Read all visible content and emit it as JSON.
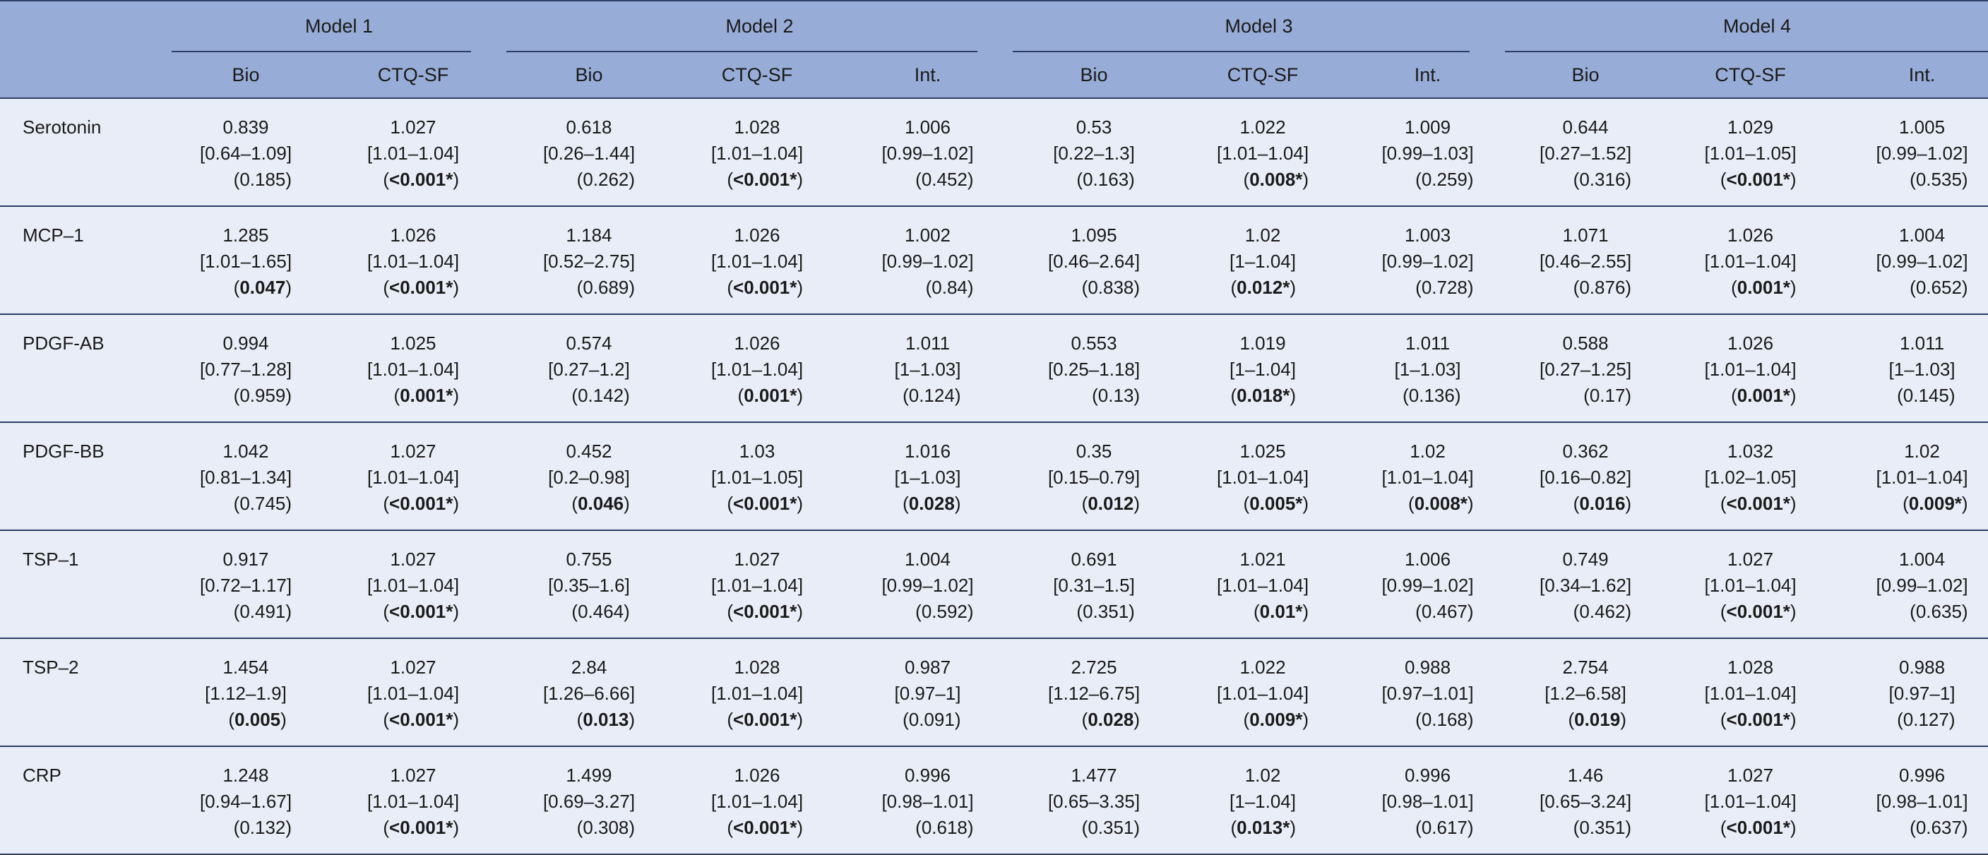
{
  "table": {
    "group_headers": [
      "Model 1",
      "Model 2",
      "Model 3",
      "Model 4"
    ],
    "sub_headers": [
      "Bio",
      "CTQ-SF",
      "Bio",
      "CTQ-SF",
      "Int.",
      "Bio",
      "CTQ-SF",
      "Int.",
      "Bio",
      "CTQ-SF",
      "Int."
    ],
    "rows": [
      {
        "label": "Serotonin",
        "cells": [
          {
            "est": "0.839",
            "ci": "[0.64–1.09]",
            "p": "0.185",
            "bold": false
          },
          {
            "est": "1.027",
            "ci": "[1.01–1.04]",
            "p": "<0.001*",
            "bold": true
          },
          {
            "est": "0.618",
            "ci": "[0.26–1.44]",
            "p": "0.262",
            "bold": false
          },
          {
            "est": "1.028",
            "ci": "[1.01–1.04]",
            "p": "<0.001*",
            "bold": true
          },
          {
            "est": "1.006",
            "ci": "[0.99–1.02]",
            "p": "0.452",
            "bold": false
          },
          {
            "est": "0.53",
            "ci": "[0.22–1.3]",
            "p": "0.163",
            "bold": false
          },
          {
            "est": "1.022",
            "ci": "[1.01–1.04]",
            "p": "0.008*",
            "bold": true
          },
          {
            "est": "1.009",
            "ci": "[0.99–1.03]",
            "p": "0.259",
            "bold": false
          },
          {
            "est": "0.644",
            "ci": "[0.27–1.52]",
            "p": "0.316",
            "bold": false
          },
          {
            "est": "1.029",
            "ci": "[1.01–1.05]",
            "p": "<0.001*",
            "bold": true
          },
          {
            "est": "1.005",
            "ci": "[0.99–1.02]",
            "p": "0.535",
            "bold": false
          }
        ]
      },
      {
        "label": "MCP–1",
        "cells": [
          {
            "est": "1.285",
            "ci": "[1.01–1.65]",
            "p": "0.047",
            "bold": true
          },
          {
            "est": "1.026",
            "ci": "[1.01–1.04]",
            "p": "<0.001*",
            "bold": true
          },
          {
            "est": "1.184",
            "ci": "[0.52–2.75]",
            "p": "0.689",
            "bold": false
          },
          {
            "est": "1.026",
            "ci": "[1.01–1.04]",
            "p": "<0.001*",
            "bold": true
          },
          {
            "est": "1.002",
            "ci": "[0.99–1.02]",
            "p": "0.84",
            "bold": false
          },
          {
            "est": "1.095",
            "ci": "[0.46–2.64]",
            "p": "0.838",
            "bold": false
          },
          {
            "est": "1.02",
            "ci": "[1–1.04]",
            "p": "0.012*",
            "bold": true
          },
          {
            "est": "1.003",
            "ci": "[0.99–1.02]",
            "p": "0.728",
            "bold": false
          },
          {
            "est": "1.071",
            "ci": "[0.46–2.55]",
            "p": "0.876",
            "bold": false
          },
          {
            "est": "1.026",
            "ci": "[1.01–1.04]",
            "p": "0.001*",
            "bold": true
          },
          {
            "est": "1.004",
            "ci": "[0.99–1.02]",
            "p": "0.652",
            "bold": false
          }
        ]
      },
      {
        "label": "PDGF-AB",
        "cells": [
          {
            "est": "0.994",
            "ci": "[0.77–1.28]",
            "p": "0.959",
            "bold": false
          },
          {
            "est": "1.025",
            "ci": "[1.01–1.04]",
            "p": "0.001*",
            "bold": true
          },
          {
            "est": "0.574",
            "ci": "[0.27–1.2]",
            "p": "0.142",
            "bold": false
          },
          {
            "est": "1.026",
            "ci": "[1.01–1.04]",
            "p": "0.001*",
            "bold": true
          },
          {
            "est": "1.011",
            "ci": "[1–1.03]",
            "p": "0.124",
            "bold": false
          },
          {
            "est": "0.553",
            "ci": "[0.25–1.18]",
            "p": "0.13",
            "bold": false
          },
          {
            "est": "1.019",
            "ci": "[1–1.04]",
            "p": "0.018*",
            "bold": true
          },
          {
            "est": "1.011",
            "ci": "[1–1.03]",
            "p": "0.136",
            "bold": false
          },
          {
            "est": "0.588",
            "ci": "[0.27–1.25]",
            "p": "0.17",
            "bold": false
          },
          {
            "est": "1.026",
            "ci": "[1.01–1.04]",
            "p": "0.001*",
            "bold": true
          },
          {
            "est": "1.011",
            "ci": "[1–1.03]",
            "p": "0.145",
            "bold": false
          }
        ]
      },
      {
        "label": "PDGF-BB",
        "cells": [
          {
            "est": "1.042",
            "ci": "[0.81–1.34]",
            "p": "0.745",
            "bold": false
          },
          {
            "est": "1.027",
            "ci": "[1.01–1.04]",
            "p": "<0.001*",
            "bold": true
          },
          {
            "est": "0.452",
            "ci": "[0.2–0.98]",
            "p": "0.046",
            "bold": true
          },
          {
            "est": "1.03",
            "ci": "[1.01–1.05]",
            "p": "<0.001*",
            "bold": true
          },
          {
            "est": "1.016",
            "ci": "[1–1.03]",
            "p": "0.028",
            "bold": true
          },
          {
            "est": "0.35",
            "ci": "[0.15–0.79]",
            "p": "0.012",
            "bold": true
          },
          {
            "est": "1.025",
            "ci": "[1.01–1.04]",
            "p": "0.005*",
            "bold": true
          },
          {
            "est": "1.02",
            "ci": "[1.01–1.04]",
            "p": "0.008*",
            "bold": true
          },
          {
            "est": "0.362",
            "ci": "[0.16–0.82]",
            "p": "0.016",
            "bold": true
          },
          {
            "est": "1.032",
            "ci": "[1.02–1.05]",
            "p": "<0.001*",
            "bold": true
          },
          {
            "est": "1.02",
            "ci": "[1.01–1.04]",
            "p": "0.009*",
            "bold": true
          }
        ]
      },
      {
        "label": "TSP–1",
        "cells": [
          {
            "est": "0.917",
            "ci": "[0.72–1.17]",
            "p": "0.491",
            "bold": false
          },
          {
            "est": "1.027",
            "ci": "[1.01–1.04]",
            "p": "<0.001*",
            "bold": true
          },
          {
            "est": "0.755",
            "ci": "[0.35–1.6]",
            "p": "0.464",
            "bold": false
          },
          {
            "est": "1.027",
            "ci": "[1.01–1.04]",
            "p": "<0.001*",
            "bold": true
          },
          {
            "est": "1.004",
            "ci": "[0.99–1.02]",
            "p": "0.592",
            "bold": false
          },
          {
            "est": "0.691",
            "ci": "[0.31–1.5]",
            "p": "0.351",
            "bold": false
          },
          {
            "est": "1.021",
            "ci": "[1.01–1.04]",
            "p": "0.01*",
            "bold": true
          },
          {
            "est": "1.006",
            "ci": "[0.99–1.02]",
            "p": "0.467",
            "bold": false
          },
          {
            "est": "0.749",
            "ci": "[0.34–1.62]",
            "p": "0.462",
            "bold": false
          },
          {
            "est": "1.027",
            "ci": "[1.01–1.04]",
            "p": "<0.001*",
            "bold": true
          },
          {
            "est": "1.004",
            "ci": "[0.99–1.02]",
            "p": "0.635",
            "bold": false
          }
        ]
      },
      {
        "label": "TSP–2",
        "cells": [
          {
            "est": "1.454",
            "ci": "[1.12–1.9]",
            "p": "0.005",
            "bold": true
          },
          {
            "est": "1.027",
            "ci": "[1.01–1.04]",
            "p": "<0.001*",
            "bold": true
          },
          {
            "est": "2.84",
            "ci": "[1.26–6.66]",
            "p": "0.013",
            "bold": true
          },
          {
            "est": "1.028",
            "ci": "[1.01–1.04]",
            "p": "<0.001*",
            "bold": true
          },
          {
            "est": "0.987",
            "ci": "[0.97–1]",
            "p": "0.091",
            "bold": false
          },
          {
            "est": "2.725",
            "ci": "[1.12–6.75]",
            "p": "0.028",
            "bold": true
          },
          {
            "est": "1.022",
            "ci": "[1.01–1.04]",
            "p": "0.009*",
            "bold": true
          },
          {
            "est": "0.988",
            "ci": "[0.97–1.01]",
            "p": "0.168",
            "bold": false
          },
          {
            "est": "2.754",
            "ci": "[1.2–6.58]",
            "p": "0.019",
            "bold": true
          },
          {
            "est": "1.028",
            "ci": "[1.01–1.04]",
            "p": "<0.001*",
            "bold": true
          },
          {
            "est": "0.988",
            "ci": "[0.97–1]",
            "p": "0.127",
            "bold": false
          }
        ]
      },
      {
        "label": "CRP",
        "cells": [
          {
            "est": "1.248",
            "ci": "[0.94–1.67]",
            "p": "0.132",
            "bold": false
          },
          {
            "est": "1.027",
            "ci": "[1.01–1.04]",
            "p": "<0.001*",
            "bold": true
          },
          {
            "est": "1.499",
            "ci": "[0.69–3.27]",
            "p": "0.308",
            "bold": false
          },
          {
            "est": "1.026",
            "ci": "[1.01–1.04]",
            "p": "<0.001*",
            "bold": true
          },
          {
            "est": "0.996",
            "ci": "[0.98–1.01]",
            "p": "0.618",
            "bold": false
          },
          {
            "est": "1.477",
            "ci": "[0.65–3.35]",
            "p": "0.351",
            "bold": false
          },
          {
            "est": "1.02",
            "ci": "[1–1.04]",
            "p": "0.013*",
            "bold": true
          },
          {
            "est": "0.996",
            "ci": "[0.98–1.01]",
            "p": "0.617",
            "bold": false
          },
          {
            "est": "1.46",
            "ci": "[0.65–3.24]",
            "p": "0.351",
            "bold": false
          },
          {
            "est": "1.027",
            "ci": "[1.01–1.04]",
            "p": "<0.001*",
            "bold": true
          },
          {
            "est": "0.996",
            "ci": "[0.98–1.01]",
            "p": "0.637",
            "bold": false
          }
        ]
      }
    ]
  }
}
